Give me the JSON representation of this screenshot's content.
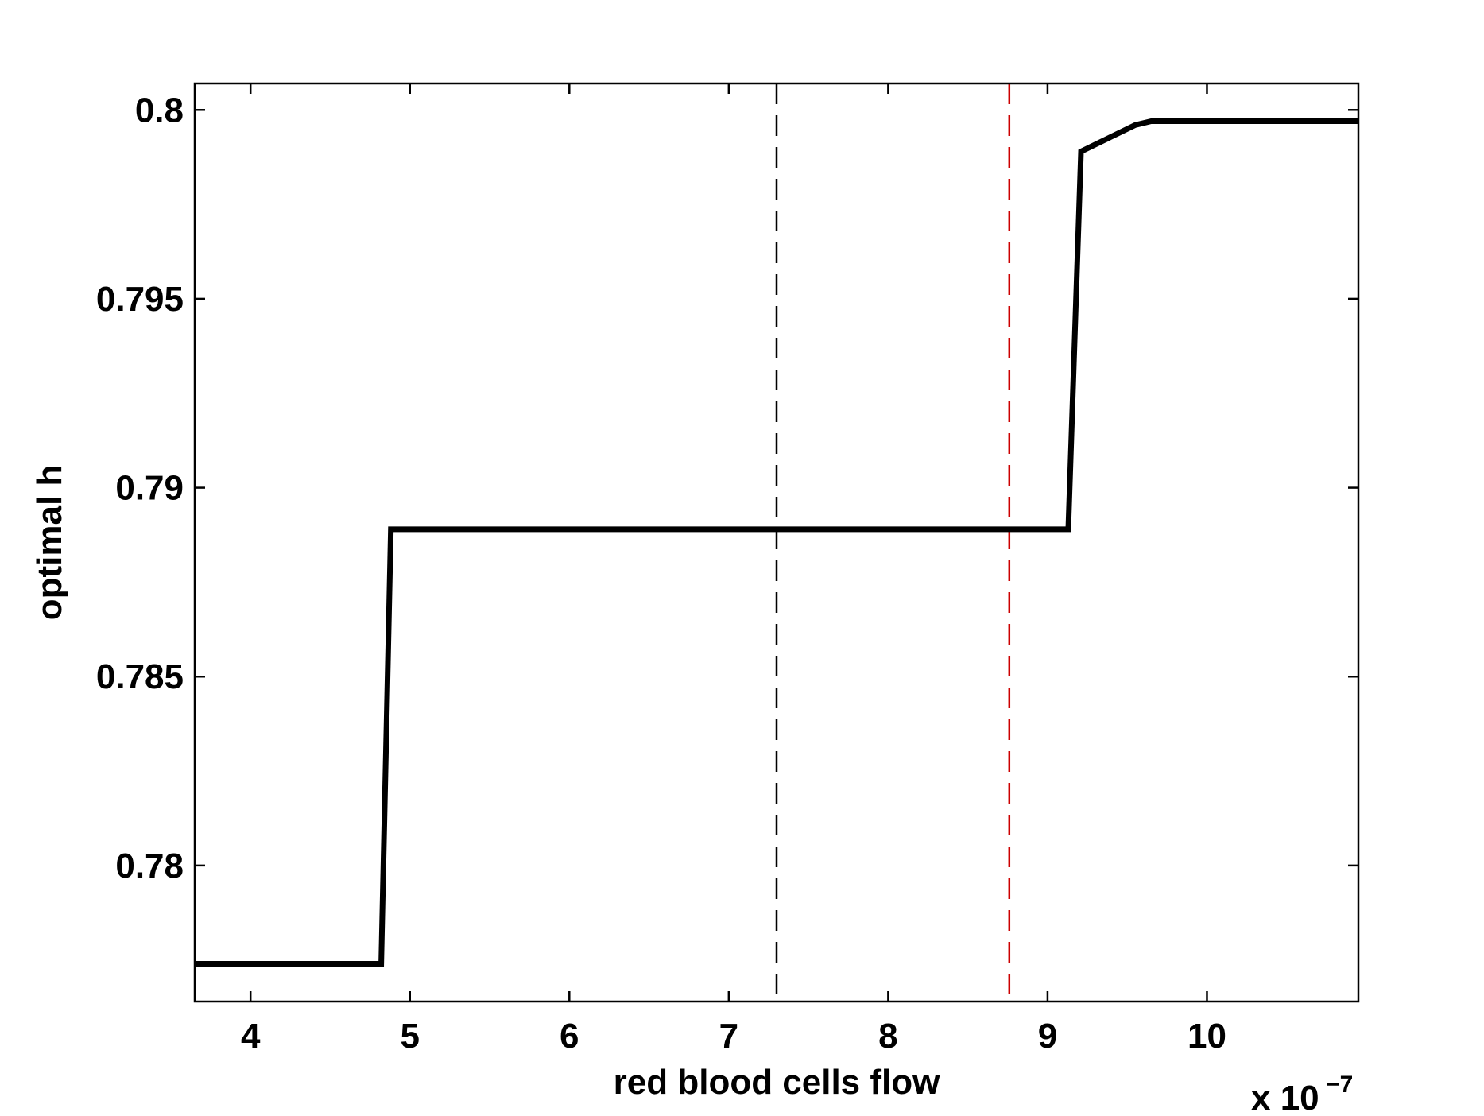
{
  "chart_data": {
    "type": "line",
    "xlabel": "red blood cells flow",
    "ylabel": "optimal h",
    "x_multiplier": {
      "prefix": "x 10",
      "exponent": "−7"
    },
    "xlim": [
      3.65,
      10.95
    ],
    "ylim": [
      0.7764,
      0.8007
    ],
    "xticks": [
      4,
      5,
      6,
      7,
      8,
      9,
      10
    ],
    "xtick_labels": [
      "4",
      "5",
      "6",
      "7",
      "8",
      "9",
      "10"
    ],
    "yticks": [
      0.78,
      0.785,
      0.79,
      0.795,
      0.8
    ],
    "ytick_labels": [
      "0.78",
      "0.785",
      "0.79",
      "0.795",
      "0.8"
    ],
    "grid": false,
    "series": [
      {
        "color": "#000000",
        "style": "solid",
        "x": [
          3.65,
          4.82,
          4.88,
          9.13,
          9.21,
          9.55,
          9.65,
          10.95
        ],
        "y": [
          0.7774,
          0.7774,
          0.7889,
          0.7889,
          0.7989,
          0.7996,
          0.7997,
          0.7997
        ]
      }
    ],
    "reference_lines": [
      {
        "x": 7.3,
        "color": "#000000",
        "style": "dashed"
      },
      {
        "x": 8.76,
        "color": "#cc0000",
        "style": "dashed"
      }
    ]
  }
}
